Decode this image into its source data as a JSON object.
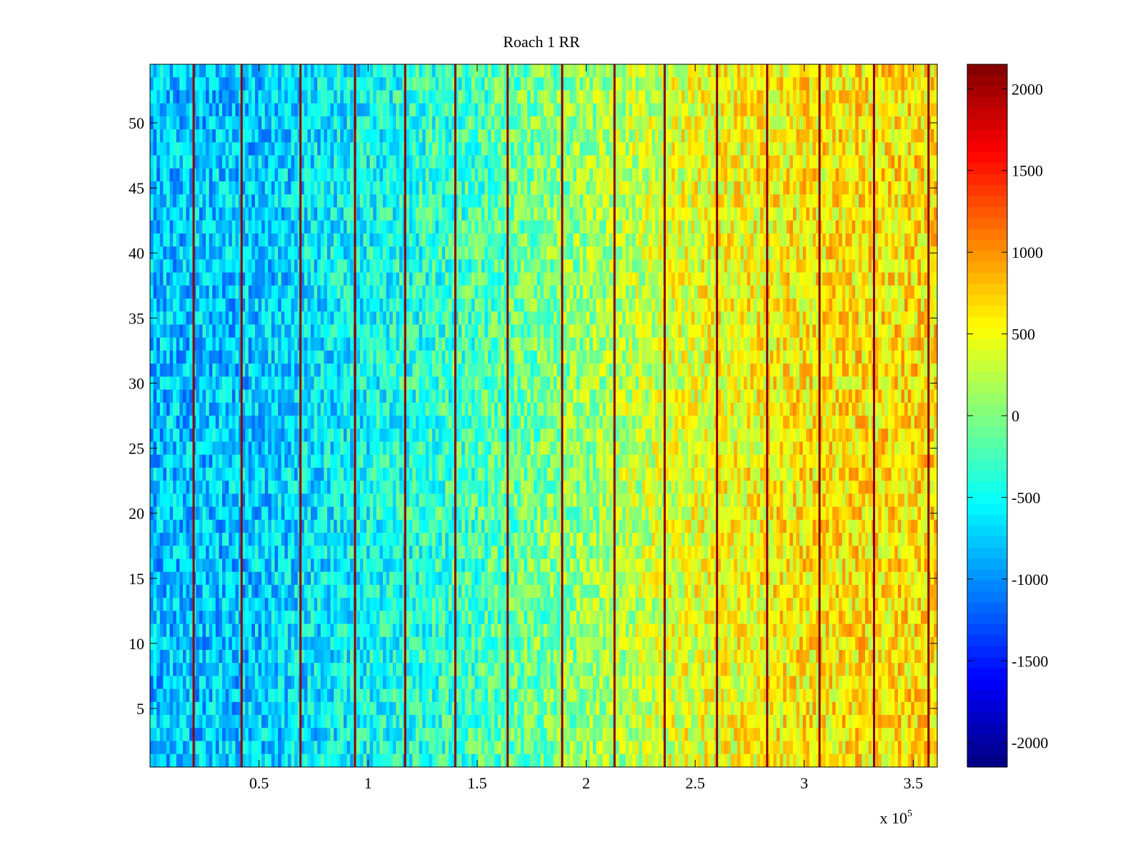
{
  "chart_data": {
    "type": "heatmap",
    "title": "Roach 1 RR",
    "xlabel": "",
    "ylabel": "",
    "x_range": [
      0,
      361000
    ],
    "y_range": [
      0.5,
      54.5
    ],
    "x_ticks": [
      50000,
      100000,
      150000,
      200000,
      250000,
      300000,
      350000
    ],
    "x_tick_labels": [
      "0.5",
      "1",
      "1.5",
      "2",
      "2.5",
      "3",
      "3.5"
    ],
    "x_exponent_label": "x 10",
    "x_exponent_power": "5",
    "y_ticks": [
      5,
      10,
      15,
      20,
      25,
      30,
      35,
      40,
      45,
      50
    ],
    "y_tick_labels": [
      "5",
      "10",
      "15",
      "20",
      "25",
      "30",
      "35",
      "40",
      "45",
      "50"
    ],
    "rows": 54,
    "colorbar": {
      "range": [
        -2150,
        2150
      ],
      "ticks": [
        2000,
        1500,
        1000,
        500,
        0,
        -500,
        -1000,
        -1500,
        -2000
      ],
      "tick_labels": [
        "2000",
        "1500",
        "1000",
        "500",
        "0",
        "-500",
        "-1000",
        "-1500",
        "-2000"
      ],
      "colormap": "jet"
    },
    "mean_value_trend": {
      "x": [
        0,
        50000,
        100000,
        150000,
        200000,
        250000,
        300000,
        361000
      ],
      "value": [
        -800,
        -750,
        -500,
        -250,
        100,
        450,
        600,
        650
      ]
    },
    "high_value_stripes_x": [
      20000,
      42000,
      69000,
      94000,
      117000,
      140000,
      164000,
      189000,
      213000,
      236000,
      260000,
      283000,
      307000,
      332000,
      357000
    ],
    "grid": false,
    "legend": "none"
  },
  "colors": {
    "background": "#ffffff",
    "axis": "#000000",
    "stripe": "#8b0000"
  }
}
